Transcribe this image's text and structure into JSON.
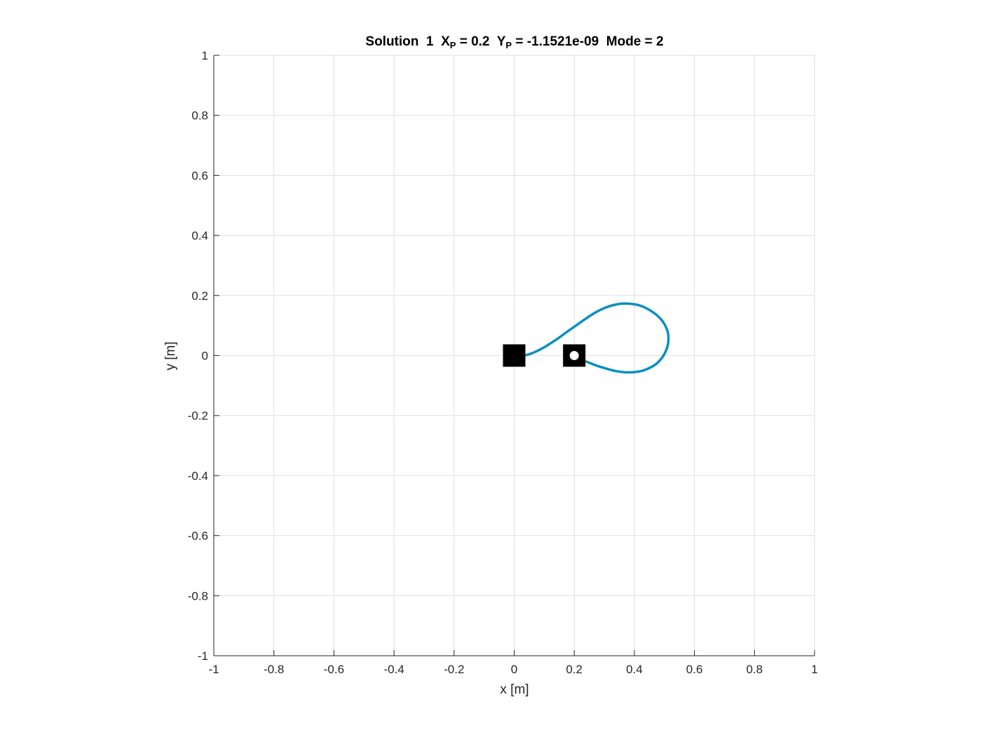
{
  "figure": {
    "title_parts": {
      "solution": "Solution  1",
      "x_var": "X",
      "x_sub": "P",
      "x_val": " = 0.2",
      "y_var": "Y",
      "y_sub": "P",
      "y_val": " = -1.1521e-09",
      "mode": "Mode = 2"
    }
  },
  "chart_data": {
    "type": "line",
    "xlabel": "x [m]",
    "ylabel": "y [m]",
    "xlim": [
      -1,
      1
    ],
    "ylim": [
      -1,
      1
    ],
    "grid": true,
    "x_ticks": [
      "-1",
      "-0.8",
      "-0.6",
      "-0.4",
      "-0.2",
      "0",
      "0.2",
      "0.4",
      "0.6",
      "0.8",
      "1"
    ],
    "y_ticks": [
      "-1",
      "-0.8",
      "-0.6",
      "-0.4",
      "-0.2",
      "0",
      "0.2",
      "0.4",
      "0.6",
      "0.8",
      "1"
    ],
    "series": [
      {
        "color": "#0a8fc2",
        "points": [
          [
            0.035,
            0.0
          ],
          [
            0.06,
            0.008
          ],
          [
            0.09,
            0.022
          ],
          [
            0.12,
            0.04
          ],
          [
            0.15,
            0.06
          ],
          [
            0.18,
            0.082
          ],
          [
            0.21,
            0.103
          ],
          [
            0.24,
            0.124
          ],
          [
            0.27,
            0.143
          ],
          [
            0.3,
            0.158
          ],
          [
            0.33,
            0.168
          ],
          [
            0.36,
            0.173
          ],
          [
            0.39,
            0.172
          ],
          [
            0.42,
            0.166
          ],
          [
            0.45,
            0.152
          ],
          [
            0.48,
            0.13
          ],
          [
            0.5,
            0.105
          ],
          [
            0.512,
            0.075
          ],
          [
            0.513,
            0.045
          ],
          [
            0.505,
            0.015
          ],
          [
            0.49,
            -0.01
          ],
          [
            0.47,
            -0.03
          ],
          [
            0.44,
            -0.046
          ],
          [
            0.41,
            -0.054
          ],
          [
            0.375,
            -0.056
          ],
          [
            0.34,
            -0.052
          ],
          [
            0.305,
            -0.043
          ],
          [
            0.27,
            -0.032
          ],
          [
            0.24,
            -0.02
          ]
        ]
      }
    ],
    "markers": [
      {
        "type": "filled-square",
        "x": 0.0,
        "y": 0.0,
        "color": "#000000"
      },
      {
        "type": "square-with-dot",
        "x": 0.2,
        "y": 0.0,
        "color": "#000000",
        "dot_color": "#ffffff"
      }
    ]
  }
}
